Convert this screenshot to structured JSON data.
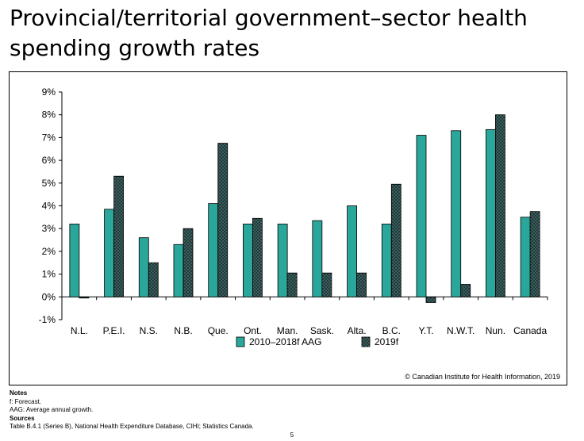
{
  "title": "Provincial/territorial government–sector health spending growth rates",
  "chart_data": {
    "type": "bar",
    "categories": [
      "N.L.",
      "P.E.I.",
      "N.S.",
      "N.B.",
      "Que.",
      "Ont.",
      "Man.",
      "Sask.",
      "Alta.",
      "B.C.",
      "Y.T.",
      "N.W.T.",
      "Nun.",
      "Canada"
    ],
    "series": [
      {
        "name": "2010–2018f AAG",
        "color": "#2ba69a",
        "values": [
          3.2,
          3.85,
          2.6,
          2.3,
          4.1,
          3.2,
          3.2,
          3.35,
          4.0,
          3.2,
          7.1,
          7.3,
          7.35,
          3.5
        ]
      },
      {
        "name": "2019f",
        "color": "#1c3b3a",
        "values": [
          -0.05,
          5.3,
          1.5,
          3.0,
          6.75,
          3.45,
          1.05,
          1.05,
          1.05,
          4.95,
          -0.25,
          0.55,
          8.0,
          3.75
        ]
      }
    ],
    "yticks": [
      "9%",
      "8%",
      "7%",
      "6%",
      "5%",
      "4%",
      "3%",
      "2%",
      "1%",
      "0%",
      "-1%"
    ],
    "ylim": [
      -1,
      9
    ],
    "grid": false,
    "legend_position": "bottom"
  },
  "copyright": "© Canadian Institute for Health Information, 2019",
  "notes": {
    "notes_heading": "Notes",
    "note_1": "f: Forecast.",
    "note_2": "AAG: Average annual growth.",
    "sources_heading": "Sources",
    "source_1": "Table B.4.1 (Series B), National Health Expenditure Database, CIHI; Statistics Canada."
  },
  "page_number": "5"
}
